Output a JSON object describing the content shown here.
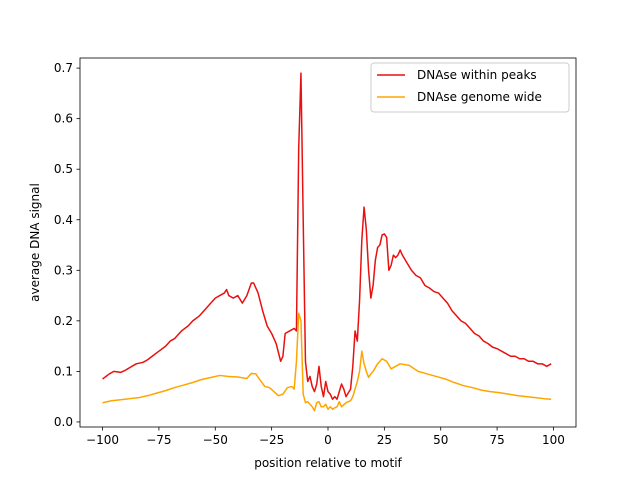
{
  "chart_data": {
    "type": "line",
    "title": "",
    "xlabel": "position relative to motif",
    "ylabel": "average DNA signal",
    "xlim": [
      -110,
      110
    ],
    "ylim": [
      -0.01,
      0.72
    ],
    "xticks": [
      -100,
      -75,
      -50,
      -25,
      0,
      25,
      50,
      75,
      100
    ],
    "xtick_labels": [
      "−100",
      "−75",
      "−50",
      "−25",
      "0",
      "25",
      "50",
      "75",
      "100"
    ],
    "yticks": [
      0.0,
      0.1,
      0.2,
      0.3,
      0.4,
      0.5,
      0.6,
      0.7
    ],
    "ytick_labels": [
      "0.0",
      "0.1",
      "0.2",
      "0.3",
      "0.4",
      "0.5",
      "0.6",
      "0.7"
    ],
    "grid": false,
    "legend_position": "top-right",
    "series": [
      {
        "name": "DNAse within peaks",
        "color": "#e8110f",
        "points": [
          [
            -100,
            0.085
          ],
          [
            -97,
            0.095
          ],
          [
            -95,
            0.1
          ],
          [
            -92,
            0.098
          ],
          [
            -90,
            0.102
          ],
          [
            -87,
            0.11
          ],
          [
            -85,
            0.115
          ],
          [
            -82,
            0.118
          ],
          [
            -80,
            0.123
          ],
          [
            -78,
            0.13
          ],
          [
            -75,
            0.14
          ],
          [
            -72,
            0.15
          ],
          [
            -70,
            0.16
          ],
          [
            -68,
            0.165
          ],
          [
            -65,
            0.18
          ],
          [
            -62,
            0.19
          ],
          [
            -60,
            0.2
          ],
          [
            -57,
            0.21
          ],
          [
            -55,
            0.22
          ],
          [
            -52,
            0.235
          ],
          [
            -50,
            0.245
          ],
          [
            -48,
            0.25
          ],
          [
            -46,
            0.255
          ],
          [
            -45,
            0.262
          ],
          [
            -44,
            0.25
          ],
          [
            -42,
            0.245
          ],
          [
            -40,
            0.25
          ],
          [
            -38,
            0.235
          ],
          [
            -36,
            0.25
          ],
          [
            -34,
            0.275
          ],
          [
            -33,
            0.275
          ],
          [
            -31,
            0.255
          ],
          [
            -29,
            0.22
          ],
          [
            -27,
            0.19
          ],
          [
            -25,
            0.175
          ],
          [
            -23,
            0.155
          ],
          [
            -21,
            0.12
          ],
          [
            -20,
            0.13
          ],
          [
            -19,
            0.175
          ],
          [
            -17,
            0.18
          ],
          [
            -15,
            0.185
          ],
          [
            -14,
            0.18
          ],
          [
            -13,
            0.54
          ],
          [
            -12,
            0.69
          ],
          [
            -11,
            0.4
          ],
          [
            -10,
            0.12
          ],
          [
            -9,
            0.08
          ],
          [
            -8,
            0.09
          ],
          [
            -7,
            0.07
          ],
          [
            -6,
            0.06
          ],
          [
            -5,
            0.075
          ],
          [
            -4,
            0.11
          ],
          [
            -3,
            0.07
          ],
          [
            -2,
            0.05
          ],
          [
            -1,
            0.08
          ],
          [
            0,
            0.06
          ],
          [
            1,
            0.055
          ],
          [
            2,
            0.045
          ],
          [
            3,
            0.05
          ],
          [
            4,
            0.045
          ],
          [
            5,
            0.06
          ],
          [
            6,
            0.075
          ],
          [
            7,
            0.065
          ],
          [
            8,
            0.05
          ],
          [
            10,
            0.065
          ],
          [
            11,
            0.11
          ],
          [
            12,
            0.18
          ],
          [
            13,
            0.16
          ],
          [
            14,
            0.24
          ],
          [
            15,
            0.36
          ],
          [
            16,
            0.425
          ],
          [
            17,
            0.38
          ],
          [
            18,
            0.3
          ],
          [
            19,
            0.245
          ],
          [
            20,
            0.27
          ],
          [
            21,
            0.32
          ],
          [
            22,
            0.345
          ],
          [
            23,
            0.35
          ],
          [
            24,
            0.37
          ],
          [
            25,
            0.372
          ],
          [
            26,
            0.365
          ],
          [
            27,
            0.3
          ],
          [
            28,
            0.31
          ],
          [
            29,
            0.33
          ],
          [
            30,
            0.325
          ],
          [
            31,
            0.33
          ],
          [
            32,
            0.34
          ],
          [
            33,
            0.33
          ],
          [
            35,
            0.315
          ],
          [
            37,
            0.3
          ],
          [
            39,
            0.29
          ],
          [
            41,
            0.285
          ],
          [
            43,
            0.27
          ],
          [
            45,
            0.265
          ],
          [
            47,
            0.258
          ],
          [
            49,
            0.255
          ],
          [
            51,
            0.245
          ],
          [
            53,
            0.235
          ],
          [
            55,
            0.22
          ],
          [
            57,
            0.21
          ],
          [
            59,
            0.2
          ],
          [
            61,
            0.195
          ],
          [
            63,
            0.185
          ],
          [
            65,
            0.175
          ],
          [
            67,
            0.17
          ],
          [
            69,
            0.16
          ],
          [
            71,
            0.155
          ],
          [
            73,
            0.148
          ],
          [
            75,
            0.145
          ],
          [
            77,
            0.14
          ],
          [
            79,
            0.135
          ],
          [
            81,
            0.13
          ],
          [
            83,
            0.13
          ],
          [
            85,
            0.125
          ],
          [
            87,
            0.125
          ],
          [
            89,
            0.12
          ],
          [
            91,
            0.12
          ],
          [
            93,
            0.115
          ],
          [
            95,
            0.115
          ],
          [
            97,
            0.11
          ],
          [
            99,
            0.115
          ]
        ]
      },
      {
        "name": "DNAse genome wide",
        "color": "#ffa500",
        "points": [
          [
            -100,
            0.038
          ],
          [
            -96,
            0.042
          ],
          [
            -92,
            0.044
          ],
          [
            -88,
            0.046
          ],
          [
            -84,
            0.048
          ],
          [
            -80,
            0.052
          ],
          [
            -76,
            0.057
          ],
          [
            -72,
            0.062
          ],
          [
            -68,
            0.068
          ],
          [
            -64,
            0.073
          ],
          [
            -60,
            0.078
          ],
          [
            -56,
            0.084
          ],
          [
            -52,
            0.088
          ],
          [
            -48,
            0.092
          ],
          [
            -44,
            0.09
          ],
          [
            -40,
            0.089
          ],
          [
            -36,
            0.086
          ],
          [
            -34,
            0.096
          ],
          [
            -32,
            0.095
          ],
          [
            -30,
            0.082
          ],
          [
            -28,
            0.07
          ],
          [
            -26,
            0.068
          ],
          [
            -24,
            0.06
          ],
          [
            -22,
            0.052
          ],
          [
            -20,
            0.055
          ],
          [
            -18,
            0.068
          ],
          [
            -16,
            0.07
          ],
          [
            -15,
            0.065
          ],
          [
            -14,
            0.12
          ],
          [
            -13,
            0.215
          ],
          [
            -12,
            0.2
          ],
          [
            -11,
            0.055
          ],
          [
            -10,
            0.038
          ],
          [
            -9,
            0.04
          ],
          [
            -8,
            0.035
          ],
          [
            -7,
            0.03
          ],
          [
            -6,
            0.022
          ],
          [
            -5,
            0.038
          ],
          [
            -4,
            0.04
          ],
          [
            -3,
            0.03
          ],
          [
            -2,
            0.03
          ],
          [
            -1,
            0.035
          ],
          [
            0,
            0.025
          ],
          [
            1,
            0.03
          ],
          [
            2,
            0.025
          ],
          [
            3,
            0.028
          ],
          [
            4,
            0.03
          ],
          [
            5,
            0.04
          ],
          [
            6,
            0.03
          ],
          [
            8,
            0.038
          ],
          [
            10,
            0.042
          ],
          [
            11,
            0.05
          ],
          [
            12,
            0.065
          ],
          [
            13,
            0.08
          ],
          [
            14,
            0.1
          ],
          [
            15,
            0.14
          ],
          [
            16,
            0.115
          ],
          [
            17,
            0.1
          ],
          [
            18,
            0.088
          ],
          [
            19,
            0.095
          ],
          [
            20,
            0.1
          ],
          [
            22,
            0.115
          ],
          [
            24,
            0.125
          ],
          [
            26,
            0.12
          ],
          [
            28,
            0.105
          ],
          [
            30,
            0.11
          ],
          [
            32,
            0.115
          ],
          [
            36,
            0.112
          ],
          [
            40,
            0.1
          ],
          [
            44,
            0.095
          ],
          [
            48,
            0.09
          ],
          [
            52,
            0.085
          ],
          [
            56,
            0.078
          ],
          [
            60,
            0.072
          ],
          [
            64,
            0.068
          ],
          [
            68,
            0.063
          ],
          [
            72,
            0.06
          ],
          [
            76,
            0.058
          ],
          [
            80,
            0.055
          ],
          [
            84,
            0.052
          ],
          [
            88,
            0.05
          ],
          [
            92,
            0.048
          ],
          [
            96,
            0.046
          ],
          [
            99,
            0.045
          ]
        ]
      }
    ]
  }
}
